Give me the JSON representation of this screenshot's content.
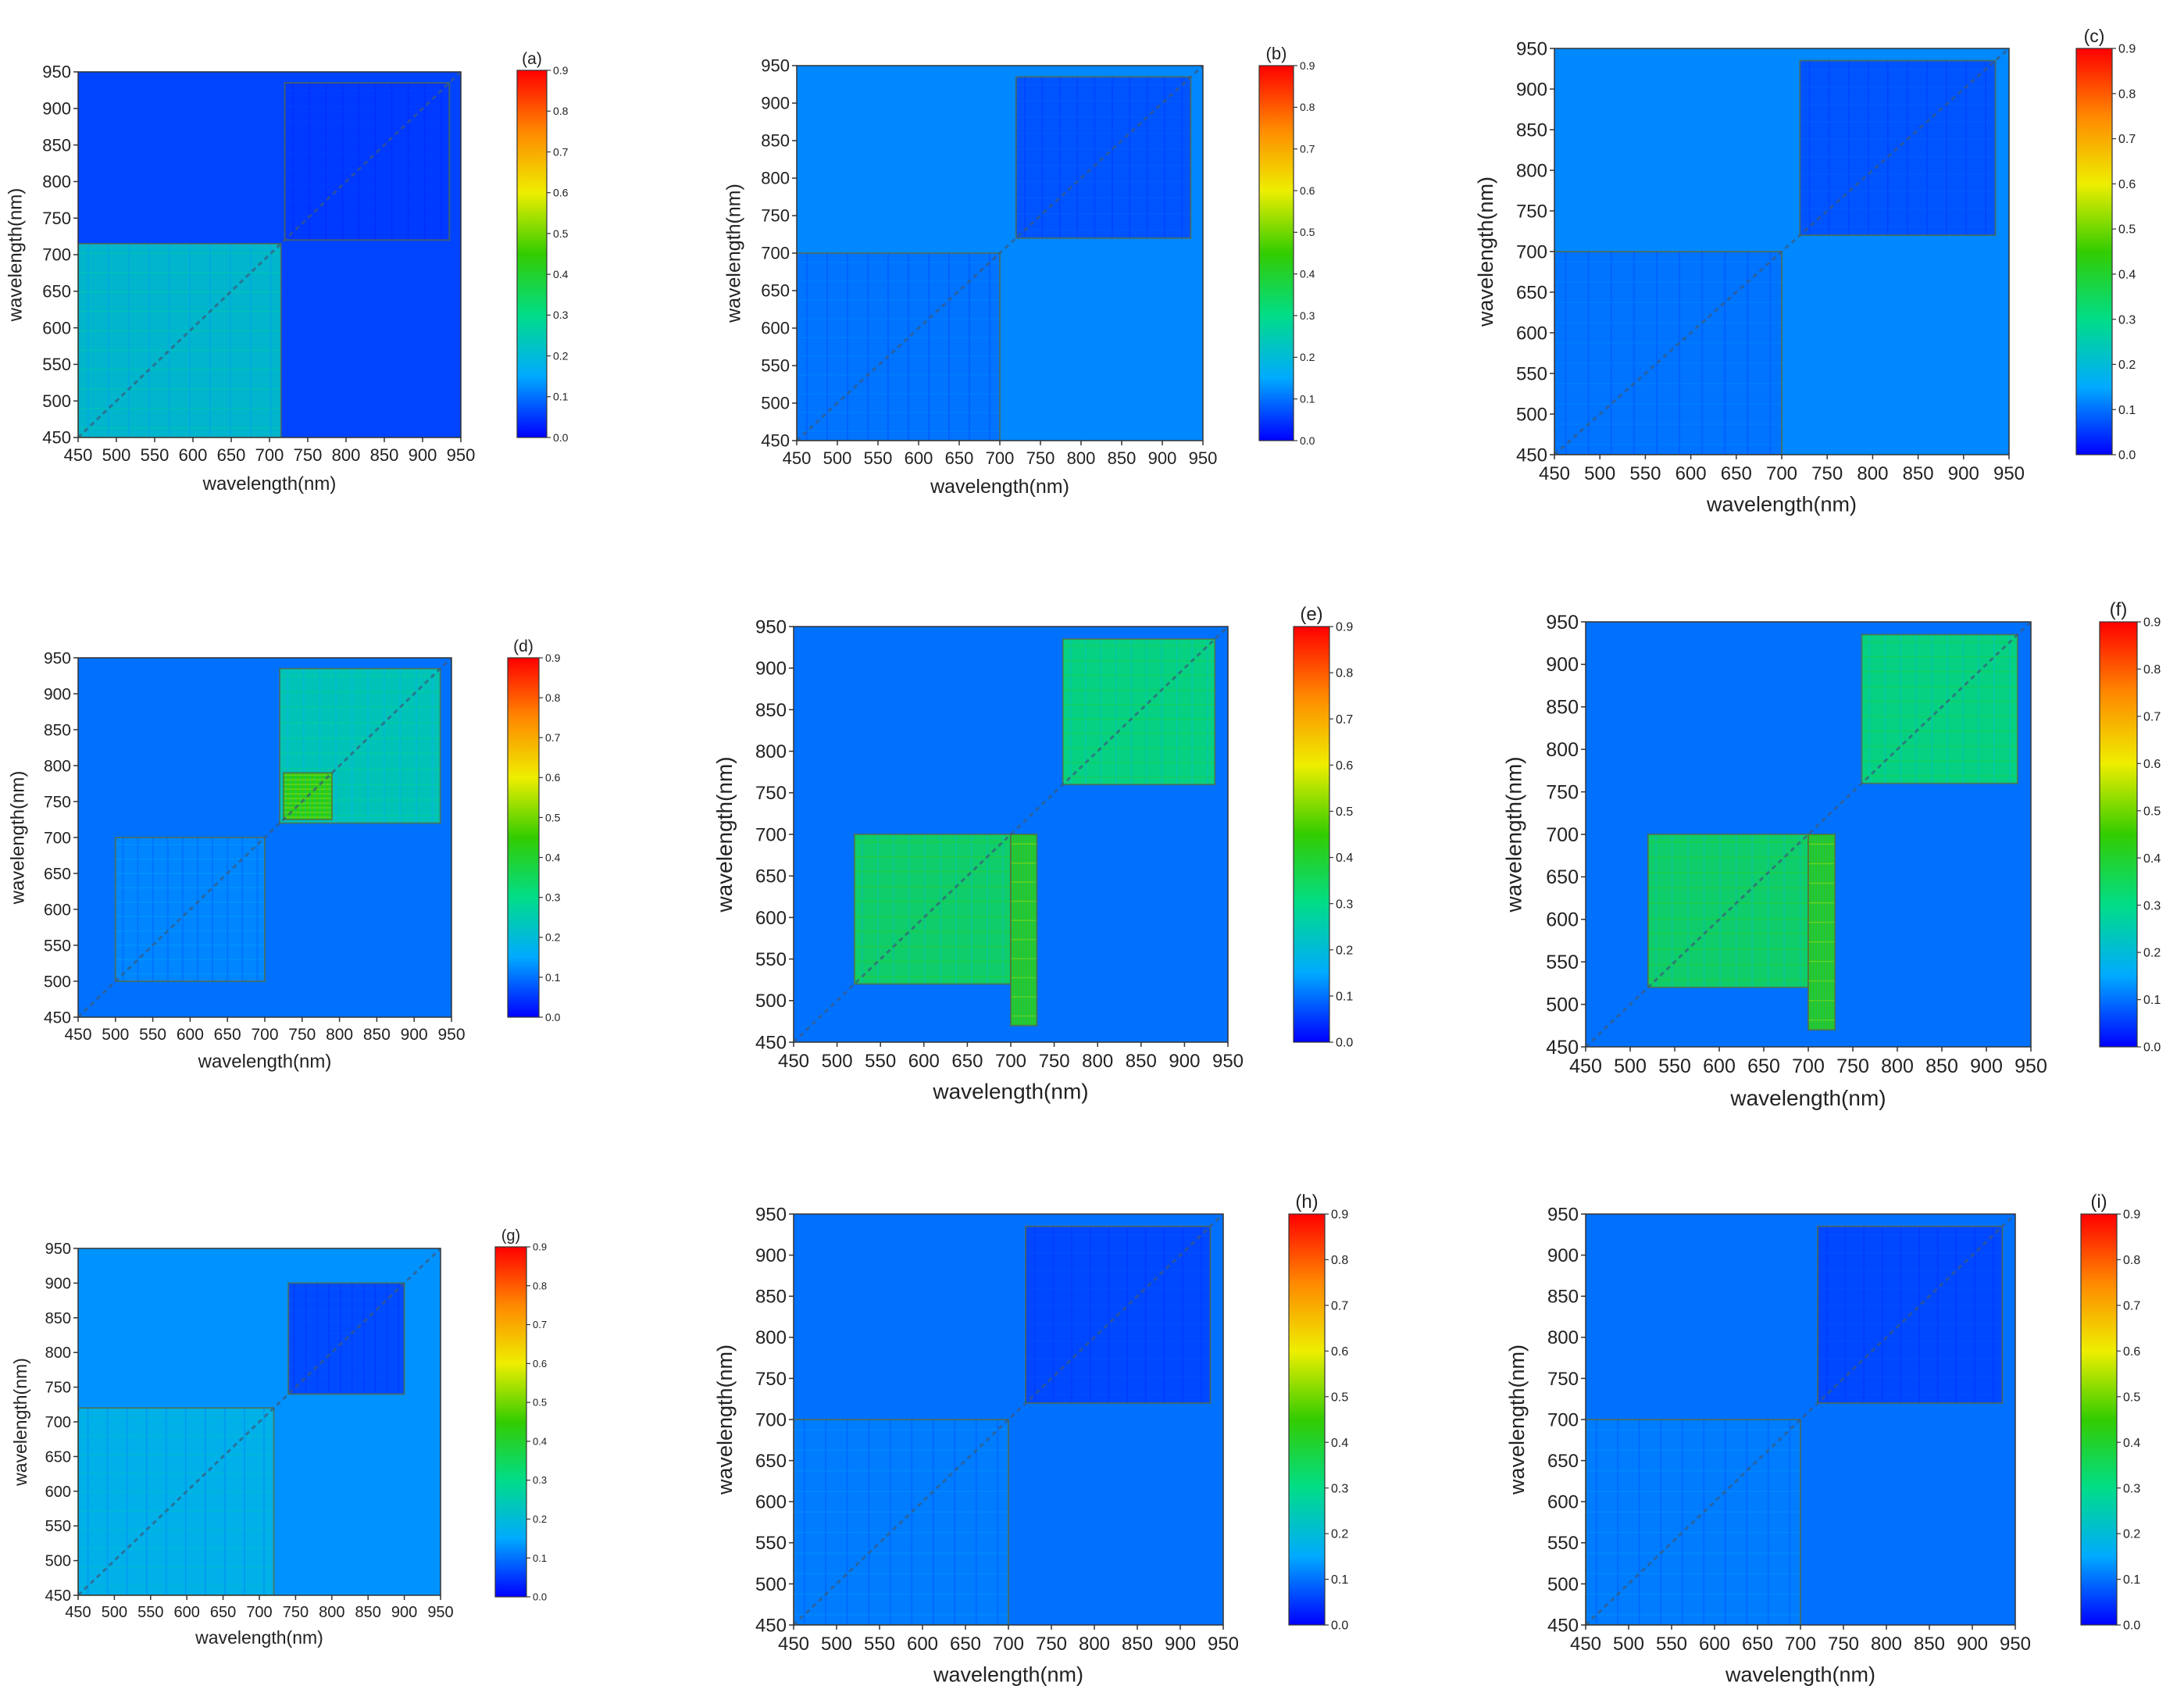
{
  "chart_data": [
    {
      "type": "heatmap",
      "panel_label": "(a)",
      "xlabel": "wavelength(nm)",
      "ylabel": "wavelength(nm)",
      "xlim": [
        450,
        950
      ],
      "ylim": [
        450,
        950
      ],
      "xticks": [
        450,
        500,
        550,
        600,
        650,
        700,
        750,
        800,
        850,
        900,
        950
      ],
      "yticks": [
        450,
        500,
        550,
        600,
        650,
        700,
        750,
        800,
        850,
        900,
        950
      ],
      "colorbar": {
        "range": [
          0.0,
          0.9
        ],
        "ticks": [
          "0.0",
          "0.1",
          "0.2",
          "0.3",
          "0.4",
          "0.5",
          "0.6",
          "0.7",
          "0.8",
          "0.9"
        ],
        "colormap": [
          "#0000ff",
          "#00aaff",
          "#00dd88",
          "#33cc00",
          "#eeee00",
          "#ff8800",
          "#ff0000"
        ]
      },
      "description_values": {
        "background": 0.06,
        "blocks": [
          {
            "x": [
              450,
              715
            ],
            "y": [
              450,
              715
            ],
            "level": 0.22
          },
          {
            "x": [
              720,
              935
            ],
            "y": [
              720,
              935
            ],
            "level": 0.05
          }
        ]
      }
    },
    {
      "type": "heatmap",
      "panel_label": "(b)",
      "xlabel": "wavelength(nm)",
      "ylabel": "wavelength(nm)",
      "xlim": [
        450,
        950
      ],
      "ylim": [
        450,
        950
      ],
      "xticks": [
        450,
        500,
        550,
        600,
        650,
        700,
        750,
        800,
        850,
        900,
        950
      ],
      "yticks": [
        450,
        500,
        550,
        600,
        650,
        700,
        750,
        800,
        850,
        900,
        950
      ],
      "colorbar": {
        "range": [
          0.0,
          0.9
        ],
        "ticks": [
          "0.0",
          "0.1",
          "0.2",
          "0.3",
          "0.4",
          "0.5",
          "0.6",
          "0.7",
          "0.8",
          "0.9"
        ]
      },
      "description_values": {
        "background": 0.12,
        "blocks": [
          {
            "x": [
              450,
              700
            ],
            "y": [
              450,
              700
            ],
            "level": 0.1
          },
          {
            "x": [
              720,
              935
            ],
            "y": [
              720,
              935
            ],
            "level": 0.07
          }
        ]
      }
    },
    {
      "type": "heatmap",
      "panel_label": "(c)",
      "xlabel": "wavelength(nm)",
      "ylabel": "wavelength(nm)",
      "xlim": [
        450,
        950
      ],
      "ylim": [
        450,
        950
      ],
      "xticks": [
        450,
        500,
        550,
        600,
        650,
        700,
        750,
        800,
        850,
        900,
        950
      ],
      "yticks": [
        450,
        500,
        550,
        600,
        650,
        700,
        750,
        800,
        850,
        900,
        950
      ],
      "colorbar": {
        "range": [
          0.0,
          0.9
        ],
        "ticks": [
          "0.0",
          "0.1",
          "0.2",
          "0.3",
          "0.4",
          "0.5",
          "0.6",
          "0.7",
          "0.8",
          "0.9"
        ]
      },
      "description_values": {
        "background": 0.12,
        "blocks": [
          {
            "x": [
              450,
              700
            ],
            "y": [
              450,
              700
            ],
            "level": 0.1
          },
          {
            "x": [
              720,
              935
            ],
            "y": [
              720,
              935
            ],
            "level": 0.07
          }
        ]
      }
    },
    {
      "type": "heatmap",
      "panel_label": "(d)",
      "xlabel": "wavelength(nm)",
      "ylabel": "wavelength(nm)",
      "xlim": [
        450,
        950
      ],
      "ylim": [
        450,
        950
      ],
      "xticks": [
        450,
        500,
        550,
        600,
        650,
        700,
        750,
        800,
        850,
        900,
        950
      ],
      "yticks": [
        450,
        500,
        550,
        600,
        650,
        700,
        750,
        800,
        850,
        900,
        950
      ],
      "colorbar": {
        "range": [
          0.0,
          0.9
        ],
        "ticks": [
          "0.0",
          "0.1",
          "0.2",
          "0.3",
          "0.4",
          "0.5",
          "0.6",
          "0.7",
          "0.8",
          "0.9"
        ]
      },
      "description_values": {
        "background": 0.1,
        "blocks": [
          {
            "x": [
              500,
              700
            ],
            "y": [
              500,
              700
            ],
            "level": 0.12
          },
          {
            "x": [
              720,
              935
            ],
            "y": [
              720,
              935
            ],
            "level": 0.25
          },
          {
            "x": [
              725,
              790
            ],
            "y": [
              725,
              790
            ],
            "level": 0.45
          }
        ]
      }
    },
    {
      "type": "heatmap",
      "panel_label": "(e)",
      "xlabel": "wavelength(nm)",
      "ylabel": "wavelength(nm)",
      "xlim": [
        450,
        950
      ],
      "ylim": [
        450,
        950
      ],
      "xticks": [
        450,
        500,
        550,
        600,
        650,
        700,
        750,
        800,
        850,
        900,
        950
      ],
      "yticks": [
        450,
        500,
        550,
        600,
        650,
        700,
        750,
        800,
        850,
        900,
        950
      ],
      "colorbar": {
        "range": [
          0.0,
          0.9
        ],
        "ticks": [
          "0.0",
          "0.1",
          "0.2",
          "0.3",
          "0.4",
          "0.5",
          "0.6",
          "0.7",
          "0.8",
          "0.9"
        ]
      },
      "description_values": {
        "background": 0.1,
        "blocks": [
          {
            "x": [
              520,
              700
            ],
            "y": [
              520,
              700
            ],
            "level": 0.35
          },
          {
            "x": [
              760,
              935
            ],
            "y": [
              760,
              935
            ],
            "level": 0.32
          },
          {
            "x": [
              700,
              730
            ],
            "y": [
              470,
              700
            ],
            "level": 0.45
          }
        ]
      }
    },
    {
      "type": "heatmap",
      "panel_label": "(f)",
      "xlabel": "wavelength(nm)",
      "ylabel": "wavelength(nm)",
      "xlim": [
        450,
        950
      ],
      "ylim": [
        450,
        950
      ],
      "xticks": [
        450,
        500,
        550,
        600,
        650,
        700,
        750,
        800,
        850,
        900,
        950
      ],
      "yticks": [
        450,
        500,
        550,
        600,
        650,
        700,
        750,
        800,
        850,
        900,
        950
      ],
      "colorbar": {
        "range": [
          0.0,
          0.9
        ],
        "ticks": [
          "0.0",
          "0.1",
          "0.2",
          "0.3",
          "0.4",
          "0.5",
          "0.6",
          "0.7",
          "0.8",
          "0.9"
        ]
      },
      "description_values": {
        "background": 0.1,
        "blocks": [
          {
            "x": [
              520,
              700
            ],
            "y": [
              520,
              700
            ],
            "level": 0.35
          },
          {
            "x": [
              760,
              935
            ],
            "y": [
              760,
              935
            ],
            "level": 0.32
          },
          {
            "x": [
              700,
              730
            ],
            "y": [
              470,
              700
            ],
            "level": 0.45
          }
        ]
      }
    },
    {
      "type": "heatmap",
      "panel_label": "(g)",
      "xlabel": "wavelength(nm)",
      "ylabel": "wavelength(nm)",
      "xlim": [
        450,
        950
      ],
      "ylim": [
        450,
        950
      ],
      "xticks": [
        450,
        500,
        550,
        600,
        650,
        700,
        750,
        800,
        850,
        900,
        950
      ],
      "yticks": [
        450,
        500,
        550,
        600,
        650,
        700,
        750,
        800,
        850,
        900,
        950
      ],
      "colorbar": {
        "range": [
          0.0,
          0.9
        ],
        "ticks": [
          "0.0",
          "0.1",
          "0.2",
          "0.3",
          "0.4",
          "0.5",
          "0.6",
          "0.7",
          "0.8",
          "0.9"
        ]
      },
      "description_values": {
        "background": 0.13,
        "blocks": [
          {
            "x": [
              450,
              720
            ],
            "y": [
              450,
              720
            ],
            "level": 0.18
          },
          {
            "x": [
              740,
              900
            ],
            "y": [
              740,
              900
            ],
            "level": 0.06
          }
        ]
      }
    },
    {
      "type": "heatmap",
      "panel_label": "(h)",
      "xlabel": "wavelength(nm)",
      "ylabel": "wavelength(nm)",
      "xlim": [
        450,
        950
      ],
      "ylim": [
        450,
        950
      ],
      "xticks": [
        450,
        500,
        550,
        600,
        650,
        700,
        750,
        800,
        850,
        900,
        950
      ],
      "yticks": [
        450,
        500,
        550,
        600,
        650,
        700,
        750,
        800,
        850,
        900,
        950
      ],
      "colorbar": {
        "range": [
          0.0,
          0.9
        ],
        "ticks": [
          "0.0",
          "0.1",
          "0.2",
          "0.3",
          "0.4",
          "0.5",
          "0.6",
          "0.7",
          "0.8",
          "0.9"
        ]
      },
      "description_values": {
        "background": 0.1,
        "blocks": [
          {
            "x": [
              450,
              700
            ],
            "y": [
              450,
              700
            ],
            "level": 0.11
          },
          {
            "x": [
              720,
              935
            ],
            "y": [
              720,
              935
            ],
            "level": 0.06
          }
        ]
      }
    },
    {
      "type": "heatmap",
      "panel_label": "(i)",
      "xlabel": "wavelength(nm)",
      "ylabel": "wavelength(nm)",
      "xlim": [
        450,
        950
      ],
      "ylim": [
        450,
        950
      ],
      "xticks": [
        450,
        500,
        550,
        600,
        650,
        700,
        750,
        800,
        850,
        900,
        950
      ],
      "yticks": [
        450,
        500,
        550,
        600,
        650,
        700,
        750,
        800,
        850,
        900,
        950
      ],
      "colorbar": {
        "range": [
          0.0,
          0.9
        ],
        "ticks": [
          "0.0",
          "0.1",
          "0.2",
          "0.3",
          "0.4",
          "0.5",
          "0.6",
          "0.7",
          "0.8",
          "0.9"
        ]
      },
      "description_values": {
        "background": 0.1,
        "blocks": [
          {
            "x": [
              450,
              700
            ],
            "y": [
              450,
              700
            ],
            "level": 0.11
          },
          {
            "x": [
              720,
              935
            ],
            "y": [
              720,
              935
            ],
            "level": 0.06
          }
        ]
      }
    }
  ]
}
